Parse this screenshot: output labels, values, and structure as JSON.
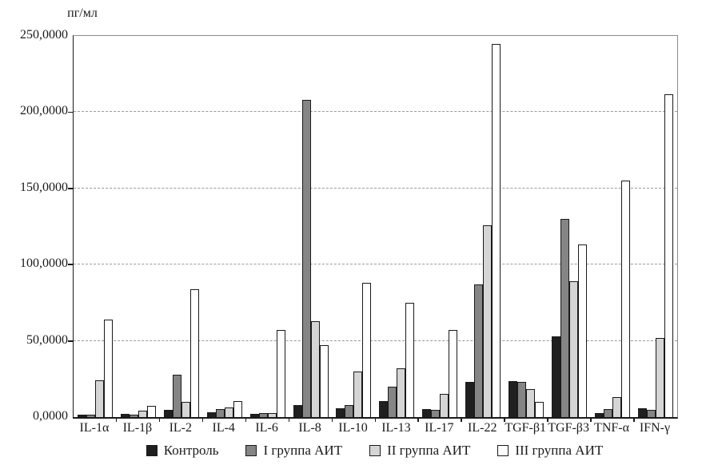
{
  "chart_data": {
    "type": "bar",
    "title": "",
    "ylabel": "пг/мл",
    "xlabel": "",
    "ylim": [
      0,
      250
    ],
    "ytick_step": 50,
    "ytick_labels": [
      "0,0000",
      "50,0000",
      "100,0000",
      "150,0000",
      "200,0000",
      "250,0000"
    ],
    "grid": true,
    "legend_position": "bottom",
    "categories": [
      "IL-1α",
      "IL-1β",
      "IL-2",
      "IL-4",
      "IL-6",
      "IL-8",
      "IL-10",
      "IL-13",
      "IL-17",
      "IL-22",
      "TGF-β1",
      "TGF-β3",
      "TNF-α",
      "IFN-γ"
    ],
    "series": [
      {
        "name": "Контроль",
        "color": "#1f1f1f",
        "values": [
          1.5,
          2,
          4.5,
          3,
          2,
          8,
          6,
          10.5,
          5.5,
          23,
          23.5,
          53,
          2.5,
          6
        ]
      },
      {
        "name": "I группа АИТ",
        "color": "#858585",
        "values": [
          1.5,
          1.5,
          28,
          5,
          2.5,
          208,
          8,
          20,
          4.5,
          87,
          23,
          130,
          5,
          4.5
        ]
      },
      {
        "name": "II группа АИТ",
        "color": "#d5d5d5",
        "values": [
          24,
          4,
          10,
          6.5,
          2.5,
          63,
          30,
          32,
          15,
          126,
          18.5,
          89,
          13,
          52
        ]
      },
      {
        "name": "III группа АИТ",
        "color": "#ffffff",
        "values": [
          64,
          7.5,
          84,
          10.5,
          57,
          47,
          88,
          75,
          57,
          245,
          10,
          113,
          155,
          212
        ]
      }
    ]
  }
}
